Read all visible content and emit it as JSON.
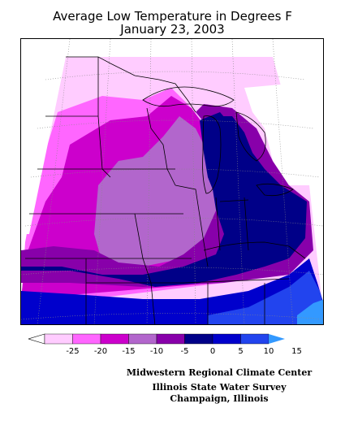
{
  "title": {
    "line1": "Average Low Temperature in Degrees F",
    "line2": "January 23, 2003"
  },
  "legend": {
    "colors": [
      "#ffccff",
      "#ff66ff",
      "#cc00cc",
      "#b266cc",
      "#8800aa",
      "#000088",
      "#0000cc",
      "#2244ee",
      "#3399ff"
    ],
    "tick_labels": [
      "-25",
      "-20",
      "-15",
      "-10",
      "-5",
      "0",
      "5",
      "10",
      "15"
    ]
  },
  "credits": {
    "line1": "Midwestern Regional Climate Center",
    "line2": "Illinois State Water Survey",
    "line3": "Champaign, Illinois"
  }
}
